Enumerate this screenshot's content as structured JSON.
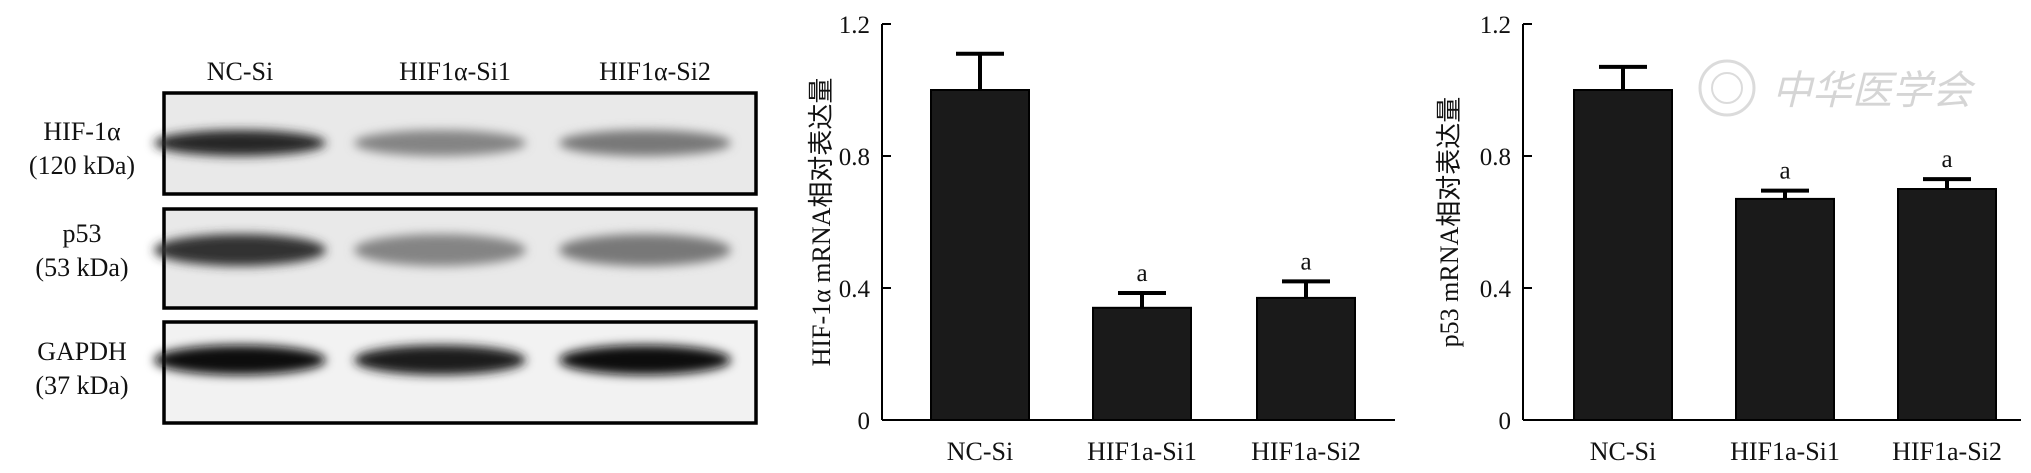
{
  "blot": {
    "lanes": [
      "NC-Si",
      "HIF1α-Si1",
      "HIF1α-Si2"
    ],
    "rows": [
      {
        "name": "HIF-1α",
        "size": "(120 kDa)",
        "intensity": [
          0.85,
          0.45,
          0.5
        ]
      },
      {
        "name": "p53",
        "size": "(53 kDa)",
        "intensity": [
          0.8,
          0.45,
          0.5
        ]
      },
      {
        "name": "GAPDH",
        "size": "(37 kDa)",
        "intensity": [
          0.95,
          0.9,
          0.95
        ]
      }
    ]
  },
  "watermark": "中华医学会",
  "chart_data": [
    {
      "type": "bar",
      "categories": [
        "NC-Si",
        "HIF1a-Si1",
        "HIF1a-Si2"
      ],
      "values": [
        1.0,
        0.34,
        0.37
      ],
      "errors": [
        0.11,
        0.045,
        0.05
      ],
      "annotations": [
        "",
        "a",
        "a"
      ],
      "title": "",
      "xlabel": "",
      "ylabel": "HIF-1α mRNA相对表达量",
      "ylim": [
        0,
        1.2
      ],
      "yticks": [
        "0",
        "0.4",
        "0.8",
        "1.2"
      ],
      "bar_color": "#1a1a1a",
      "grid": false
    },
    {
      "type": "bar",
      "categories": [
        "NC-Si",
        "HIF1a-Si1",
        "HIF1a-Si2"
      ],
      "values": [
        1.0,
        0.67,
        0.7
      ],
      "errors": [
        0.07,
        0.025,
        0.03
      ],
      "annotations": [
        "",
        "a",
        "a"
      ],
      "title": "",
      "xlabel": "",
      "ylabel": "p53 mRNA相对表达量",
      "ylim": [
        0,
        1.2
      ],
      "yticks": [
        "0",
        "0.4",
        "0.8",
        "1.2"
      ],
      "bar_color": "#1a1a1a",
      "grid": false
    }
  ]
}
